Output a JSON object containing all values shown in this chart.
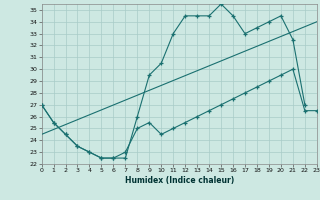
{
  "xlabel": "Humidex (Indice chaleur)",
  "xlim": [
    0,
    23
  ],
  "ylim": [
    22,
    35.5
  ],
  "yticks": [
    22,
    23,
    24,
    25,
    26,
    27,
    28,
    29,
    30,
    31,
    32,
    33,
    34,
    35
  ],
  "xticks": [
    0,
    1,
    2,
    3,
    4,
    5,
    6,
    7,
    8,
    9,
    10,
    11,
    12,
    13,
    14,
    15,
    16,
    17,
    18,
    19,
    20,
    21,
    22,
    23
  ],
  "bg_color": "#cde8e2",
  "grid_color": "#a8ccc8",
  "line_color": "#1a7070",
  "curve1_x": [
    0,
    1,
    2,
    3,
    4,
    5,
    6,
    7,
    8,
    9,
    10,
    11,
    12,
    13,
    14,
    15,
    16,
    17,
    18,
    19,
    20,
    21,
    22
  ],
  "curve1_y": [
    27.0,
    25.5,
    24.5,
    23.5,
    23.0,
    22.5,
    22.5,
    22.5,
    26.0,
    29.5,
    30.5,
    33.0,
    34.5,
    34.5,
    34.5,
    35.5,
    34.5,
    33.0,
    33.5,
    34.0,
    34.5,
    32.5,
    27.0
  ],
  "curve2_x": [
    0,
    23
  ],
  "curve2_y": [
    24.5,
    34.0
  ],
  "curve3_x": [
    0,
    1,
    2,
    3,
    4,
    5,
    6,
    7,
    8,
    9,
    10,
    11,
    12,
    13,
    14,
    15,
    16,
    17,
    18,
    19,
    20,
    21,
    22,
    23
  ],
  "curve3_y": [
    27.0,
    25.5,
    24.5,
    23.5,
    23.0,
    22.5,
    22.5,
    23.0,
    25.0,
    25.5,
    24.5,
    25.0,
    25.5,
    26.0,
    26.5,
    27.0,
    27.5,
    28.0,
    28.5,
    29.0,
    29.5,
    30.0,
    26.5,
    26.5
  ]
}
